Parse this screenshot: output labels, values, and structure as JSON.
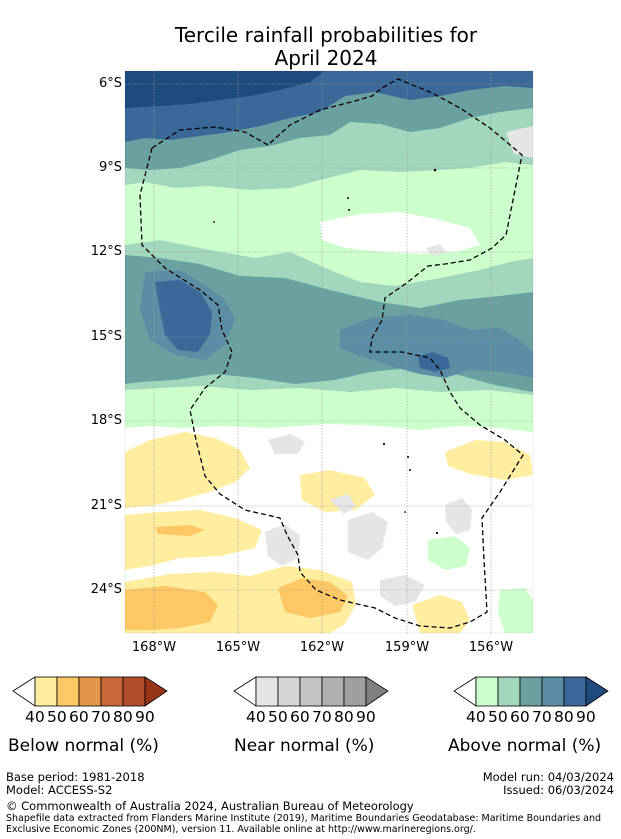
{
  "title": {
    "line1": "Tercile rainfall probabilities for",
    "line2": "April 2024"
  },
  "map": {
    "y_ticks": [
      "6°S",
      "9°S",
      "12°S",
      "15°S",
      "18°S",
      "21°S",
      "24°S"
    ],
    "x_ticks": [
      "168°W",
      "165°W",
      "162°W",
      "159°W",
      "156°W"
    ],
    "colors": {
      "above": [
        "#ccffcc",
        "#a2d6bd",
        "#6aa0a0",
        "#5b8ea4",
        "#3a6898",
        "#1e4a7e"
      ],
      "below": [
        "#ffeda0",
        "#fec965",
        "#e3954a",
        "#c86838",
        "#b14d2b",
        "#983516"
      ],
      "near": [
        "#e5e5e5",
        "#d6d6d6",
        "#c4c4c4",
        "#b0b0b0",
        "#9f9f9f",
        "#808080"
      ],
      "neutral": "#ffffff",
      "boundary": "#000000"
    },
    "boundary_style": "dashed EEZ outline"
  },
  "colorbars": [
    {
      "title": "Below normal (%)",
      "labels": [
        "40",
        "50",
        "60",
        "70",
        "80",
        "90"
      ]
    },
    {
      "title": "Near normal (%)",
      "labels": [
        "40",
        "50",
        "60",
        "70",
        "80",
        "90"
      ]
    },
    {
      "title": "Above normal (%)",
      "labels": [
        "40",
        "50",
        "60",
        "70",
        "80",
        "90"
      ]
    }
  ],
  "meta": {
    "base_period": "Base period: 1981-2018",
    "model": "Model: ACCESS-S2",
    "model_run": "Model run: 04/03/2024",
    "issued": "Issued: 06/03/2024"
  },
  "footer": {
    "copyright": "© Commonwealth of Australia 2024, Australian Bureau of Meteorology",
    "shapefile_line1": "Shapefile data extracted from Flanders Marine Institute (2019), Maritime Boundaries Geodatabase: Maritime Boundaries and",
    "shapefile_line2": "Exclusive Economic Zones (200NM), version 11. Available online at http://www.marineregions.org/."
  }
}
